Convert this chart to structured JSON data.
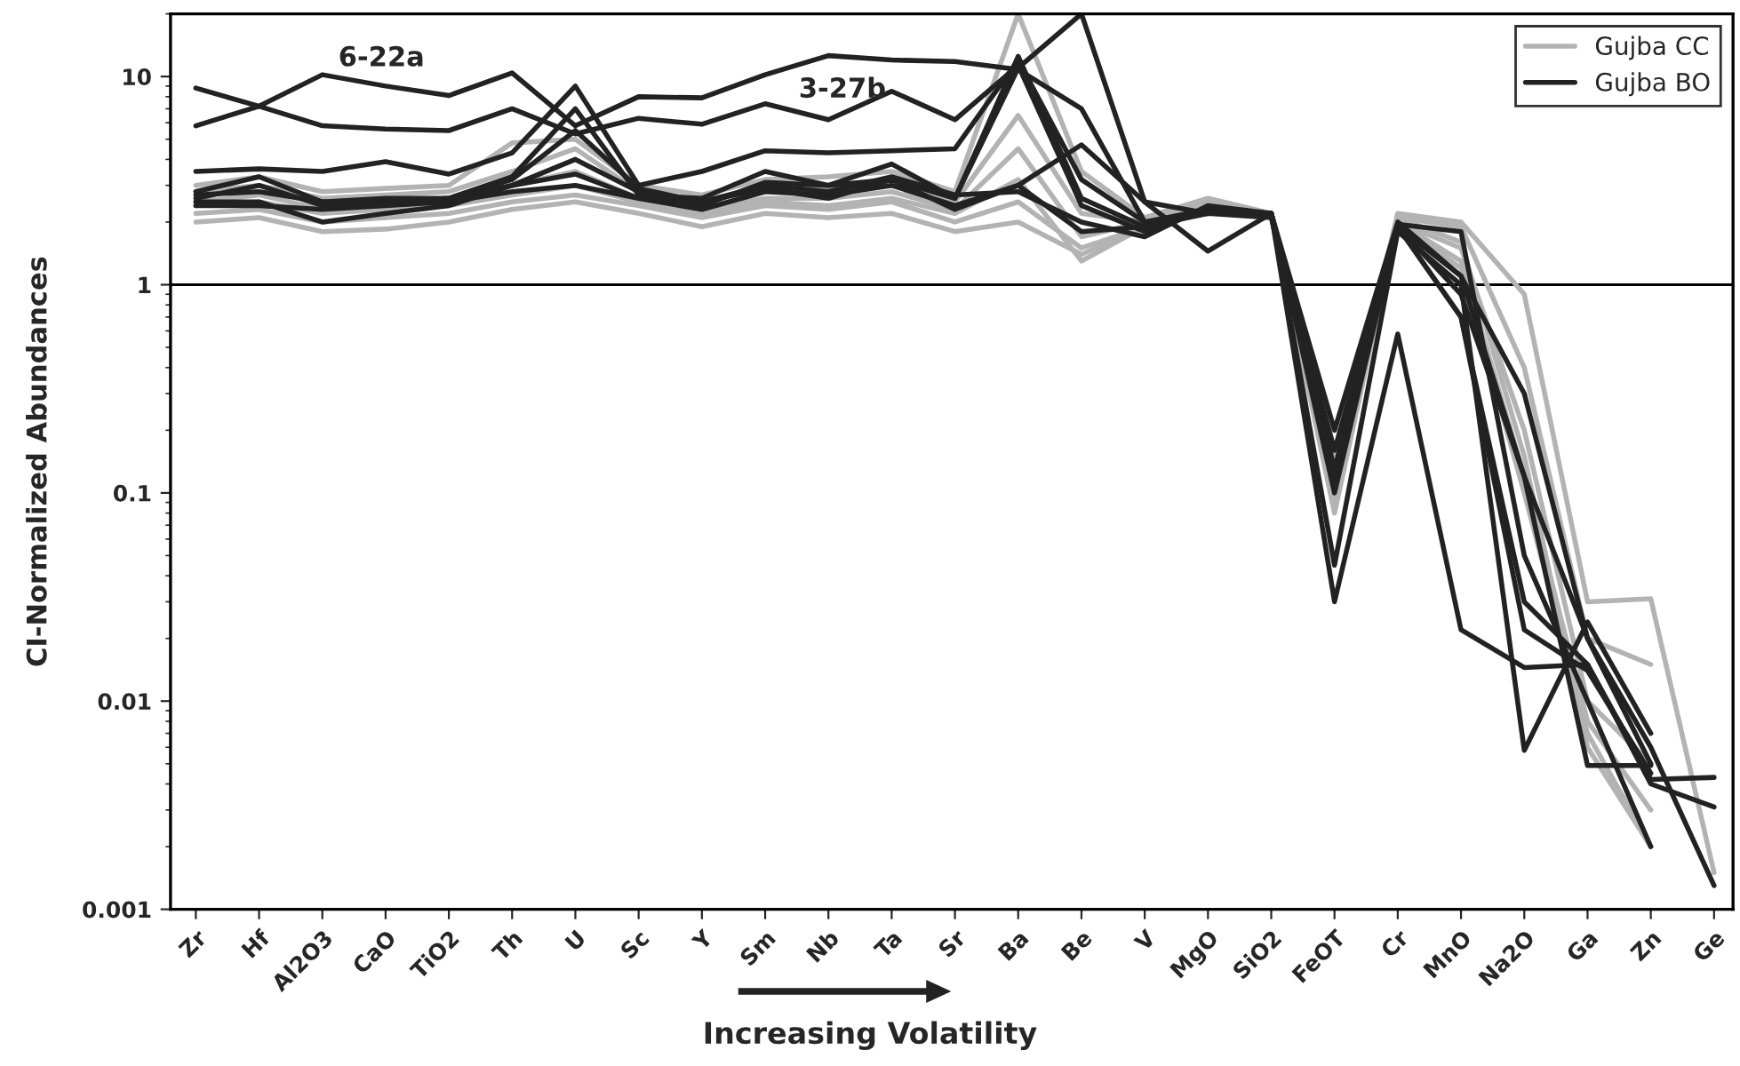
{
  "chart_data": {
    "type": "line",
    "ylabel": "CI-Normalized Abundances",
    "xlabel": "Increasing Volatility",
    "log": "y",
    "categories": [
      "Zr",
      "Hf",
      "Al2O3",
      "CaO",
      "TiO2",
      "Th",
      "U",
      "Sc",
      "Y",
      "Sm",
      "Nb",
      "Ta",
      "Sr",
      "Ba",
      "Be",
      "V",
      "MgO",
      "SiO2",
      "FeOT",
      "Cr",
      "MnO",
      "Na2O",
      "Ga",
      "Zn",
      "Ge"
    ],
    "ylim": [
      0.001,
      20
    ],
    "yticks": [
      0.001,
      0.01,
      0.1,
      1,
      10
    ],
    "grid": false,
    "legend": "top right",
    "marker": "none",
    "line_style": "solid",
    "ref_lines": [
      {
        "axis": "y",
        "value": 1,
        "color": "#000000"
      }
    ],
    "annotations": [
      "6-22a",
      "3-27b"
    ],
    "series": [
      {
        "name": "Gujba CC",
        "color": "#b3b3b3",
        "values": [
          2.0,
          2.1,
          1.8,
          1.85,
          2.0,
          2.3,
          2.5,
          2.2,
          1.9,
          2.2,
          2.1,
          2.2,
          1.8,
          2.0,
          1.4,
          1.9,
          2.5,
          2.2,
          0.12,
          2.2,
          2.0,
          0.9,
          0.03,
          0.031,
          0.0015
        ]
      },
      {
        "color": "#b3b3b3",
        "values": [
          2.2,
          2.3,
          2.0,
          2.1,
          2.2,
          2.5,
          2.7,
          2.4,
          2.1,
          2.4,
          2.3,
          2.5,
          2.0,
          2.5,
          1.5,
          1.9,
          2.4,
          2.2,
          0.15,
          2.1,
          1.9,
          0.4,
          0.02,
          0.015,
          null
        ]
      },
      {
        "color": "#b3b3b3",
        "values": [
          2.5,
          2.7,
          2.3,
          2.4,
          2.5,
          3.0,
          3.5,
          2.6,
          2.3,
          2.6,
          2.6,
          2.8,
          2.3,
          4.5,
          1.7,
          2.0,
          2.4,
          2.2,
          0.1,
          2.0,
          1.5,
          0.2,
          0.01,
          0.005,
          null
        ]
      },
      {
        "color": "#b3b3b3",
        "values": [
          2.8,
          3.0,
          2.6,
          2.7,
          2.8,
          3.5,
          4.5,
          2.8,
          2.5,
          2.9,
          2.9,
          3.0,
          2.5,
          6.5,
          2.2,
          2.0,
          2.5,
          2.2,
          0.09,
          2.0,
          1.3,
          0.12,
          0.008,
          0.003,
          null
        ]
      },
      {
        "color": "#b3b3b3",
        "values": [
          3.0,
          3.3,
          2.8,
          2.9,
          3.0,
          4.8,
          5.0,
          3.0,
          2.7,
          3.2,
          3.3,
          3.5,
          2.8,
          20,
          3.5,
          2.1,
          2.6,
          2.2,
          0.11,
          2.1,
          1.6,
          0.15,
          0.006,
          0.002,
          null
        ]
      },
      {
        "color": "#b3b3b3",
        "values": [
          2.4,
          2.5,
          2.2,
          2.3,
          2.4,
          2.7,
          3.0,
          2.5,
          2.2,
          2.5,
          2.4,
          2.6,
          2.2,
          3.2,
          1.3,
          1.9,
          2.4,
          2.2,
          0.08,
          2.0,
          1.2,
          0.1,
          0.007,
          0.002,
          null
        ]
      },
      {
        "name": "Gujba BO",
        "color": "#222222",
        "values": [
          5.8,
          7.2,
          10.2,
          9.0,
          8.1,
          10.4,
          5.8,
          8.0,
          7.9,
          10.2,
          12.6,
          12.0,
          11.8,
          10.8,
          7.0,
          2.0,
          2.2,
          2.2,
          0.13,
          1.9,
          1.1,
          0.12,
          0.02,
          0.005,
          null
        ]
      },
      {
        "color": "#222222",
        "values": [
          8.8,
          7.2,
          5.8,
          5.6,
          5.5,
          7.0,
          5.3,
          6.3,
          5.9,
          7.4,
          6.2,
          8.5,
          6.2,
          11.3,
          2.4,
          1.8,
          2.3,
          2.2,
          0.11,
          1.9,
          0.7,
          0.03,
          0.015,
          0.004,
          0.0031
        ]
      },
      {
        "color": "#222222",
        "values": [
          3.5,
          3.6,
          3.5,
          3.9,
          3.4,
          4.3,
          9.0,
          3.0,
          3.5,
          4.4,
          4.3,
          4.4,
          4.5,
          12.0,
          3.2,
          2.0,
          2.3,
          2.2,
          0.2,
          2.0,
          1.1,
          0.3,
          0.02,
          0.006,
          0.0013
        ]
      },
      {
        "color": "#222222",
        "values": [
          2.8,
          3.3,
          2.5,
          2.5,
          2.6,
          3.3,
          7.0,
          2.7,
          2.6,
          3.5,
          3.0,
          3.8,
          2.6,
          12.5,
          2.6,
          1.9,
          2.3,
          2.2,
          0.1,
          1.9,
          0.7,
          0.022,
          0.014,
          0.0045,
          null
        ]
      },
      {
        "color": "#222222",
        "values": [
          2.6,
          3.0,
          2.4,
          2.5,
          2.6,
          3.0,
          4.0,
          2.8,
          2.4,
          3.1,
          3.0,
          3.2,
          2.6,
          11.0,
          20,
          2.5,
          1.45,
          2.2,
          0.045,
          1.8,
          1.0,
          0.0058,
          0.024,
          0.007,
          null
        ]
      },
      {
        "color": "#222222",
        "values": [
          2.5,
          2.5,
          2.0,
          2.2,
          2.4,
          3.0,
          3.4,
          2.6,
          2.3,
          2.8,
          2.7,
          3.0,
          2.4,
          3.0,
          4.7,
          2.5,
          2.2,
          2.2,
          0.03,
          0.58,
          0.022,
          0.0145,
          0.015,
          0.0042,
          0.0043
        ]
      },
      {
        "color": "#222222",
        "values": [
          2.4,
          2.4,
          2.3,
          2.4,
          2.5,
          2.8,
          3.0,
          2.6,
          2.5,
          2.9,
          2.6,
          3.2,
          2.3,
          3.0,
          1.8,
          1.9,
          2.2,
          2.1,
          0.12,
          1.9,
          0.9,
          0.12,
          0.0049,
          0.0049,
          null
        ]
      },
      {
        "color": "#222222",
        "values": [
          2.7,
          2.8,
          2.5,
          2.6,
          2.6,
          3.2,
          5.5,
          2.9,
          2.5,
          3.0,
          2.8,
          3.3,
          2.7,
          2.8,
          2.0,
          1.7,
          2.4,
          2.2,
          0.16,
          1.95,
          1.8,
          0.05,
          0.01,
          0.002,
          null
        ]
      }
    ]
  }
}
